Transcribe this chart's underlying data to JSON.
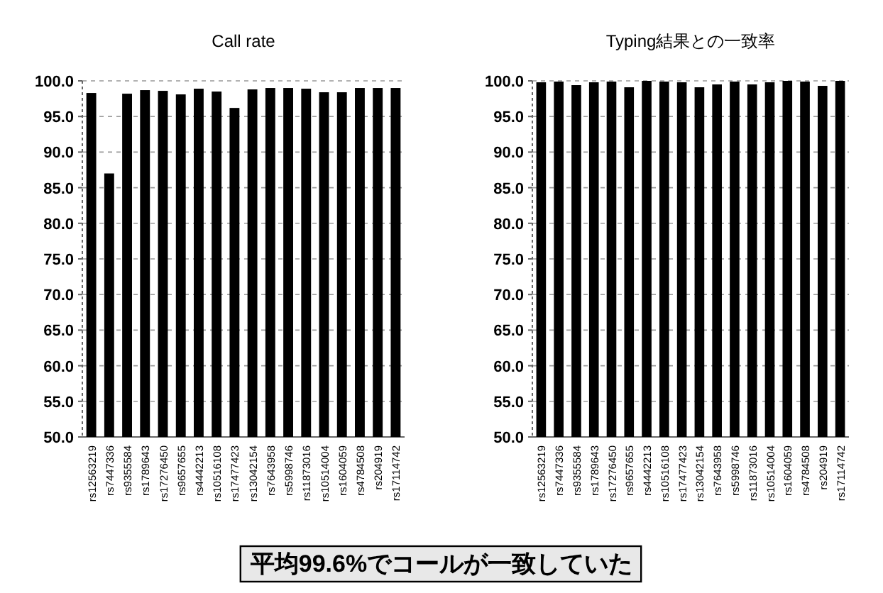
{
  "chart_data": [
    {
      "type": "bar",
      "title": "Call rate",
      "categories": [
        "rs12563219",
        "rs7447336",
        "rs9355584",
        "rs1789643",
        "rs17276450",
        "rs9657655",
        "rs4442213",
        "rs10516108",
        "rs17477423",
        "rs13042154",
        "rs7643958",
        "rs5998746",
        "rs11873016",
        "rs10514004",
        "rs1604059",
        "rs4784508",
        "rs204919",
        "rs17114742"
      ],
      "values": [
        98.3,
        87.0,
        98.2,
        98.7,
        98.6,
        98.1,
        98.9,
        98.5,
        96.2,
        98.8,
        99.0,
        99.0,
        98.9,
        98.4,
        98.4,
        99.0,
        99.0,
        99.0
      ],
      "color": "#000000",
      "ylim": [
        50,
        100
      ],
      "yticks": [
        {
          "value": 50,
          "label": "50.0"
        },
        {
          "value": 55,
          "label": "55.0"
        },
        {
          "value": 60,
          "label": "60.0"
        },
        {
          "value": 65,
          "label": "65.0"
        },
        {
          "value": 70,
          "label": "70.0"
        },
        {
          "value": 75,
          "label": "75.0"
        },
        {
          "value": 80,
          "label": "80.0"
        },
        {
          "value": 85,
          "label": "85.0"
        },
        {
          "value": 90,
          "label": "90.0"
        },
        {
          "value": 95,
          "label": "95.0"
        },
        {
          "value": 100,
          "label": "100.0"
        }
      ],
      "grid": "y",
      "annotations": [
        "平均99.6%でコールが一致していた"
      ]
    },
    {
      "type": "bar",
      "title": "Typing結果との一致率",
      "categories": [
        "rs12563219",
        "rs7447336",
        "rs9355584",
        "rs1789643",
        "rs17276450",
        "rs9657655",
        "rs4442213",
        "rs10516108",
        "rs17477423",
        "rs13042154",
        "rs7643958",
        "rs5998746",
        "rs11873016",
        "rs10514004",
        "rs1604059",
        "rs4784508",
        "rs204919",
        "rs17114742"
      ],
      "values": [
        99.8,
        99.9,
        99.4,
        99.8,
        99.9,
        99.1,
        100.0,
        99.9,
        99.8,
        99.1,
        99.5,
        99.9,
        99.5,
        99.8,
        100.0,
        99.9,
        99.3,
        100.0
      ],
      "color": "#000000",
      "ylim": [
        50,
        100
      ],
      "yticks": [
        {
          "value": 50,
          "label": "50.0"
        },
        {
          "value": 55,
          "label": "55.0"
        },
        {
          "value": 60,
          "label": "60.0"
        },
        {
          "value": 65,
          "label": "65.0"
        },
        {
          "value": 70,
          "label": "70.0"
        },
        {
          "value": 75,
          "label": "75.0"
        },
        {
          "value": 80,
          "label": "80.0"
        },
        {
          "value": 85,
          "label": "85.0"
        },
        {
          "value": 90,
          "label": "90.0"
        },
        {
          "value": 95,
          "label": "95.0"
        },
        {
          "value": 100,
          "label": "100.0"
        }
      ],
      "grid": "y"
    }
  ]
}
